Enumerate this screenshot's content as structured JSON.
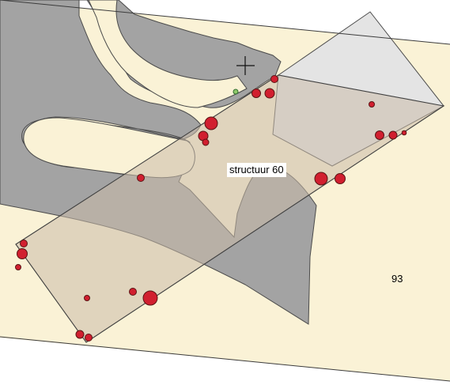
{
  "map": {
    "colors": {
      "background": "#faf2d6",
      "dark_area": "#a3a3a3",
      "light_polygon": "#e4e4e4",
      "trench_fill": "rgba(202,188,170,0.55)",
      "feature_fill": "#d11f2f",
      "marker_fill": "#8fc96a"
    },
    "icons": {
      "cursor": "crosshair-cursor-icon"
    },
    "labels": {
      "structure": "structuur 60",
      "parcel": "93"
    }
  }
}
